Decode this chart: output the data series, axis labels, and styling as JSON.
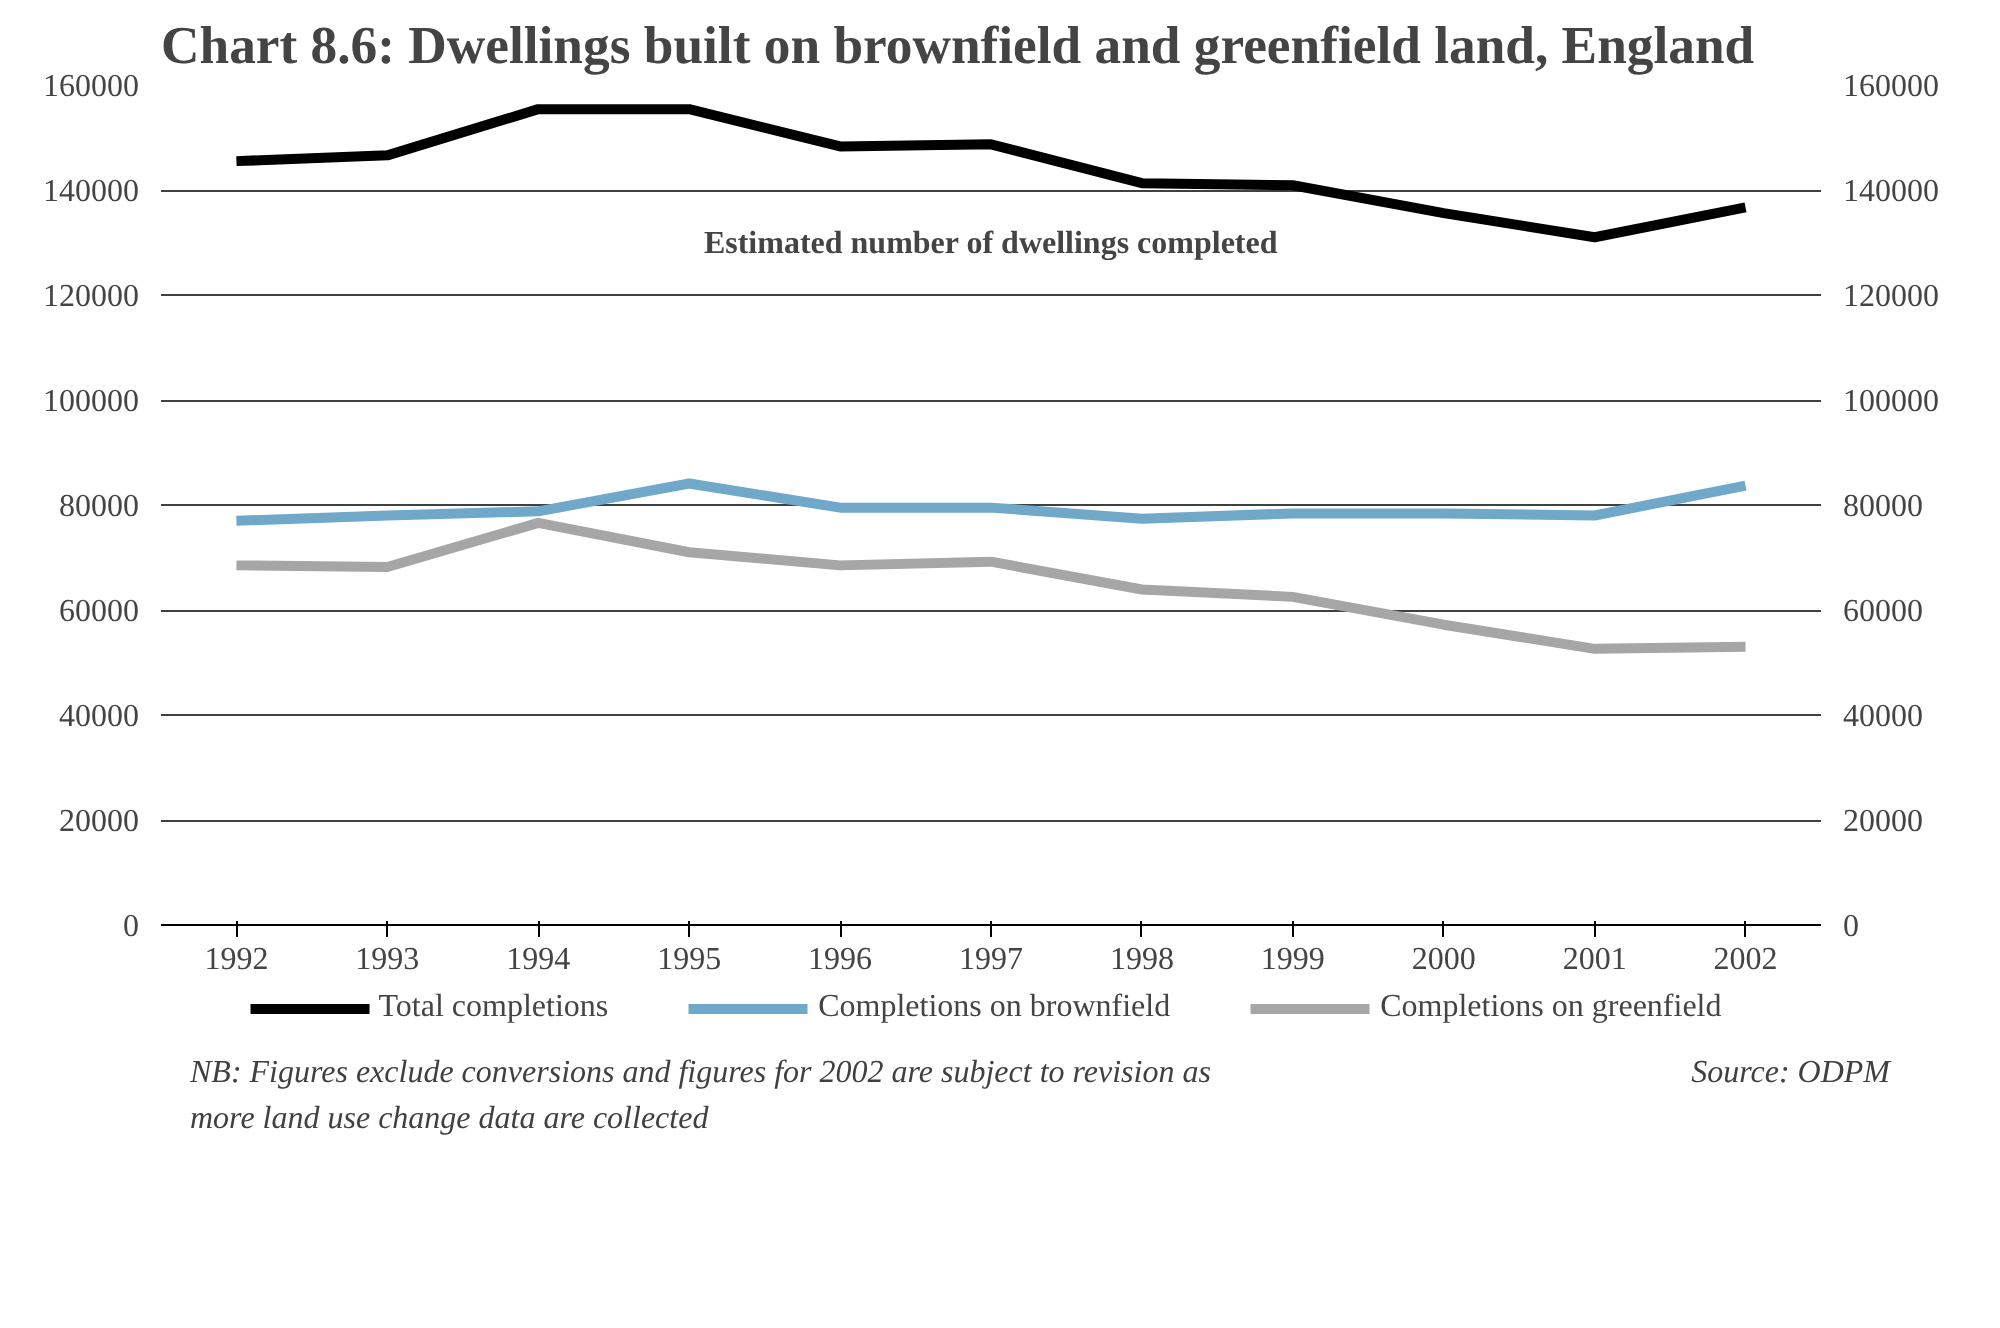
{
  "chart_data": {
    "type": "line",
    "title": "Chart 8.6: Dwellings built on brownfield and greenfield land, England",
    "categories": [
      "1992",
      "1993",
      "1994",
      "1995",
      "1996",
      "1997",
      "1998",
      "1999",
      "2000",
      "2001",
      "2002"
    ],
    "series": [
      {
        "name": "Total completions",
        "color": "#000000",
        "values": [
          145500,
          146600,
          155400,
          155400,
          148300,
          148700,
          141300,
          140900,
          135600,
          131000,
          136700
        ]
      },
      {
        "name": "Completions on brownfield",
        "color": "#6fa8c8",
        "values": [
          77000,
          78000,
          78800,
          84100,
          79500,
          79500,
          77400,
          78400,
          78400,
          78000,
          83700
        ]
      },
      {
        "name": "Completions on greenfield",
        "color": "#a6a6a6",
        "values": [
          68500,
          68200,
          76600,
          71000,
          68500,
          69200,
          63900,
          62500,
          57200,
          52600,
          53000
        ]
      }
    ],
    "ylim": [
      0,
      160000
    ],
    "yticks": [
      0,
      20000,
      40000,
      60000,
      80000,
      100000,
      120000,
      140000,
      160000
    ],
    "y2lim": [
      0,
      160000
    ],
    "y2ticks": [
      0,
      20000,
      40000,
      60000,
      80000,
      100000,
      120000,
      140000,
      160000
    ],
    "grid": "y",
    "legend": "bottom",
    "marker": "none",
    "line_style": "solid",
    "annotations": [
      "Estimated number of dwellings completed",
      "NB: Figures exclude conversions and figures for 2002 are subject to revision as more land use change data are collected",
      "Source: ODPM"
    ]
  }
}
